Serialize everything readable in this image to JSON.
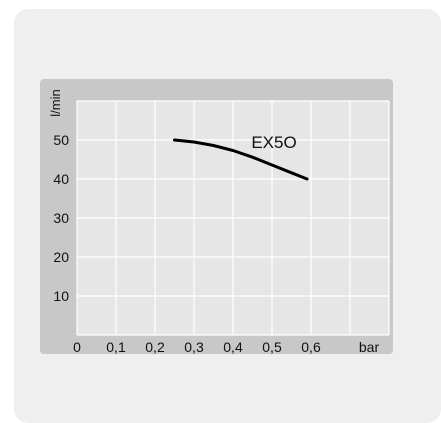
{
  "chart_data": {
    "type": "line",
    "title": "",
    "xlabel": "bar",
    "ylabel": "l/min",
    "xlim": [
      0,
      0.8
    ],
    "ylim": [
      0,
      60
    ],
    "grid": true,
    "x_ticks": [
      "0",
      "0,1",
      "0,2",
      "0,3",
      "0,4",
      "0,5",
      "0,6"
    ],
    "y_ticks": [
      "10",
      "20",
      "30",
      "40",
      "50"
    ],
    "series": [
      {
        "name": "EX5O",
        "x": [
          0.25,
          0.3,
          0.35,
          0.4,
          0.45,
          0.5,
          0.55,
          0.59
        ],
        "y": [
          50,
          49.5,
          48.6,
          47.3,
          45.6,
          43.6,
          41.6,
          40
        ],
        "color": "#000000"
      }
    ]
  },
  "colors": {
    "card": "#efefef",
    "panel": "#c8c8c8",
    "plot": "#e6e6e6",
    "grid": "#ffffff"
  }
}
